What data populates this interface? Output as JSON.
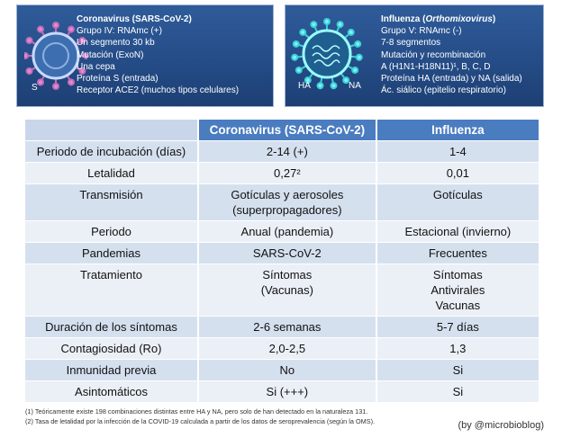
{
  "cards": [
    {
      "title": [
        "Coronavirus (SARS-CoV-2)"
      ],
      "lines": [
        "Grupo IV: RNAmc (+)",
        "Un segmento 30 kb",
        "Mutación (ExoN)",
        "Una cepa",
        "Proteína S (entrada)",
        "Receptor ACE2 (muchos tipos celulares)"
      ],
      "icon_labels": [
        "S"
      ]
    },
    {
      "title": [
        "Influenza (",
        "Orthomixovirus",
        ")"
      ],
      "lines": [
        "Grupo V: RNAmc (-)",
        "7-8 segmentos",
        "Mutación y recombinación",
        "A (H1N1-H18N11)¹, B, C, D",
        "Proteína HA (entrada) y NA (salida)",
        "Ác. siálico (epitelio respiratorio)"
      ],
      "icon_labels": [
        "HA",
        "NA"
      ]
    }
  ],
  "table": {
    "header": [
      "Coronavirus (SARS-CoV-2)",
      "Influenza"
    ],
    "rows": [
      [
        "Periodo de incubación (días)",
        [
          "2-14 (+)"
        ],
        [
          "1-4"
        ]
      ],
      [
        "Letalidad",
        [
          "0,27²"
        ],
        [
          "0,01"
        ]
      ],
      [
        "Transmisión",
        [
          "Gotículas y aerosoles",
          "(superpropagadores)"
        ],
        [
          "Gotículas"
        ]
      ],
      [
        "Periodo",
        [
          "Anual (pandemia)"
        ],
        [
          "Estacional (invierno)"
        ]
      ],
      [
        "Pandemias",
        [
          "SARS-CoV-2"
        ],
        [
          "Frecuentes"
        ]
      ],
      [
        "Tratamiento",
        [
          "Síntomas",
          "(Vacunas)"
        ],
        [
          "Síntomas",
          "Antivirales",
          "Vacunas"
        ]
      ],
      [
        "Duración de los síntomas",
        [
          "2-6 semanas"
        ],
        [
          "5-7 días"
        ]
      ],
      [
        "Contagiosidad (Ro)",
        [
          "2,0-2,5"
        ],
        [
          "1,3"
        ]
      ],
      [
        "Inmunidad previa",
        [
          "No"
        ],
        [
          "Si"
        ]
      ],
      [
        "Asintomáticos",
        [
          "Si (+++)"
        ],
        [
          "Si"
        ]
      ]
    ]
  },
  "notes": [
    "(1) Teóricamente existe 198 combinaciones distintas entre HA y NA, pero solo de han detectado en la naturaleza 131.",
    "(2) Tasa de letalidad por la infección de la COVID-19 calculada a partir de los datos de seroprevalencia (según la OMS)."
  ],
  "credit": "(by @microbioblog)"
}
